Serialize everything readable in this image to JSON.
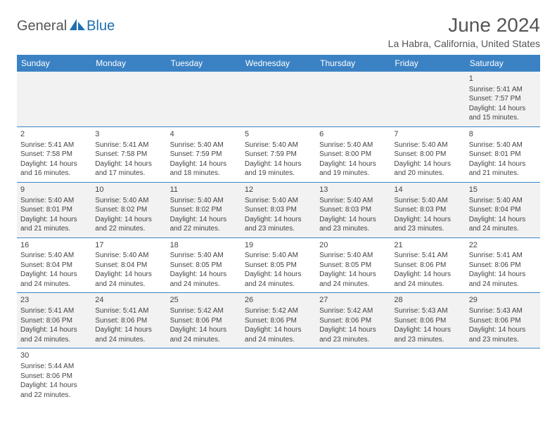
{
  "logo": {
    "text_general": "General",
    "text_blue": "Blue",
    "general_color": "#555555",
    "blue_color": "#1f6fb2",
    "sail_color": "#1f6fb2"
  },
  "title": "June 2024",
  "location": "La Habra, California, United States",
  "header_bg": "#3b82c4",
  "weekday_names": [
    "Sunday",
    "Monday",
    "Tuesday",
    "Wednesday",
    "Thursday",
    "Friday",
    "Saturday"
  ],
  "grid": [
    [
      null,
      null,
      null,
      null,
      null,
      null,
      {
        "day": "1",
        "sunrise": "Sunrise: 5:41 AM",
        "sunset": "Sunset: 7:57 PM",
        "daylight1": "Daylight: 14 hours",
        "daylight2": "and 15 minutes."
      }
    ],
    [
      {
        "day": "2",
        "sunrise": "Sunrise: 5:41 AM",
        "sunset": "Sunset: 7:58 PM",
        "daylight1": "Daylight: 14 hours",
        "daylight2": "and 16 minutes."
      },
      {
        "day": "3",
        "sunrise": "Sunrise: 5:41 AM",
        "sunset": "Sunset: 7:58 PM",
        "daylight1": "Daylight: 14 hours",
        "daylight2": "and 17 minutes."
      },
      {
        "day": "4",
        "sunrise": "Sunrise: 5:40 AM",
        "sunset": "Sunset: 7:59 PM",
        "daylight1": "Daylight: 14 hours",
        "daylight2": "and 18 minutes."
      },
      {
        "day": "5",
        "sunrise": "Sunrise: 5:40 AM",
        "sunset": "Sunset: 7:59 PM",
        "daylight1": "Daylight: 14 hours",
        "daylight2": "and 19 minutes."
      },
      {
        "day": "6",
        "sunrise": "Sunrise: 5:40 AM",
        "sunset": "Sunset: 8:00 PM",
        "daylight1": "Daylight: 14 hours",
        "daylight2": "and 19 minutes."
      },
      {
        "day": "7",
        "sunrise": "Sunrise: 5:40 AM",
        "sunset": "Sunset: 8:00 PM",
        "daylight1": "Daylight: 14 hours",
        "daylight2": "and 20 minutes."
      },
      {
        "day": "8",
        "sunrise": "Sunrise: 5:40 AM",
        "sunset": "Sunset: 8:01 PM",
        "daylight1": "Daylight: 14 hours",
        "daylight2": "and 21 minutes."
      }
    ],
    [
      {
        "day": "9",
        "sunrise": "Sunrise: 5:40 AM",
        "sunset": "Sunset: 8:01 PM",
        "daylight1": "Daylight: 14 hours",
        "daylight2": "and 21 minutes."
      },
      {
        "day": "10",
        "sunrise": "Sunrise: 5:40 AM",
        "sunset": "Sunset: 8:02 PM",
        "daylight1": "Daylight: 14 hours",
        "daylight2": "and 22 minutes."
      },
      {
        "day": "11",
        "sunrise": "Sunrise: 5:40 AM",
        "sunset": "Sunset: 8:02 PM",
        "daylight1": "Daylight: 14 hours",
        "daylight2": "and 22 minutes."
      },
      {
        "day": "12",
        "sunrise": "Sunrise: 5:40 AM",
        "sunset": "Sunset: 8:03 PM",
        "daylight1": "Daylight: 14 hours",
        "daylight2": "and 23 minutes."
      },
      {
        "day": "13",
        "sunrise": "Sunrise: 5:40 AM",
        "sunset": "Sunset: 8:03 PM",
        "daylight1": "Daylight: 14 hours",
        "daylight2": "and 23 minutes."
      },
      {
        "day": "14",
        "sunrise": "Sunrise: 5:40 AM",
        "sunset": "Sunset: 8:03 PM",
        "daylight1": "Daylight: 14 hours",
        "daylight2": "and 23 minutes."
      },
      {
        "day": "15",
        "sunrise": "Sunrise: 5:40 AM",
        "sunset": "Sunset: 8:04 PM",
        "daylight1": "Daylight: 14 hours",
        "daylight2": "and 24 minutes."
      }
    ],
    [
      {
        "day": "16",
        "sunrise": "Sunrise: 5:40 AM",
        "sunset": "Sunset: 8:04 PM",
        "daylight1": "Daylight: 14 hours",
        "daylight2": "and 24 minutes."
      },
      {
        "day": "17",
        "sunrise": "Sunrise: 5:40 AM",
        "sunset": "Sunset: 8:04 PM",
        "daylight1": "Daylight: 14 hours",
        "daylight2": "and 24 minutes."
      },
      {
        "day": "18",
        "sunrise": "Sunrise: 5:40 AM",
        "sunset": "Sunset: 8:05 PM",
        "daylight1": "Daylight: 14 hours",
        "daylight2": "and 24 minutes."
      },
      {
        "day": "19",
        "sunrise": "Sunrise: 5:40 AM",
        "sunset": "Sunset: 8:05 PM",
        "daylight1": "Daylight: 14 hours",
        "daylight2": "and 24 minutes."
      },
      {
        "day": "20",
        "sunrise": "Sunrise: 5:40 AM",
        "sunset": "Sunset: 8:05 PM",
        "daylight1": "Daylight: 14 hours",
        "daylight2": "and 24 minutes."
      },
      {
        "day": "21",
        "sunrise": "Sunrise: 5:41 AM",
        "sunset": "Sunset: 8:06 PM",
        "daylight1": "Daylight: 14 hours",
        "daylight2": "and 24 minutes."
      },
      {
        "day": "22",
        "sunrise": "Sunrise: 5:41 AM",
        "sunset": "Sunset: 8:06 PM",
        "daylight1": "Daylight: 14 hours",
        "daylight2": "and 24 minutes."
      }
    ],
    [
      {
        "day": "23",
        "sunrise": "Sunrise: 5:41 AM",
        "sunset": "Sunset: 8:06 PM",
        "daylight1": "Daylight: 14 hours",
        "daylight2": "and 24 minutes."
      },
      {
        "day": "24",
        "sunrise": "Sunrise: 5:41 AM",
        "sunset": "Sunset: 8:06 PM",
        "daylight1": "Daylight: 14 hours",
        "daylight2": "and 24 minutes."
      },
      {
        "day": "25",
        "sunrise": "Sunrise: 5:42 AM",
        "sunset": "Sunset: 8:06 PM",
        "daylight1": "Daylight: 14 hours",
        "daylight2": "and 24 minutes."
      },
      {
        "day": "26",
        "sunrise": "Sunrise: 5:42 AM",
        "sunset": "Sunset: 8:06 PM",
        "daylight1": "Daylight: 14 hours",
        "daylight2": "and 24 minutes."
      },
      {
        "day": "27",
        "sunrise": "Sunrise: 5:42 AM",
        "sunset": "Sunset: 8:06 PM",
        "daylight1": "Daylight: 14 hours",
        "daylight2": "and 23 minutes."
      },
      {
        "day": "28",
        "sunrise": "Sunrise: 5:43 AM",
        "sunset": "Sunset: 8:06 PM",
        "daylight1": "Daylight: 14 hours",
        "daylight2": "and 23 minutes."
      },
      {
        "day": "29",
        "sunrise": "Sunrise: 5:43 AM",
        "sunset": "Sunset: 8:06 PM",
        "daylight1": "Daylight: 14 hours",
        "daylight2": "and 23 minutes."
      }
    ],
    [
      {
        "day": "30",
        "sunrise": "Sunrise: 5:44 AM",
        "sunset": "Sunset: 8:06 PM",
        "daylight1": "Daylight: 14 hours",
        "daylight2": "and 22 minutes."
      },
      null,
      null,
      null,
      null,
      null,
      null
    ]
  ]
}
